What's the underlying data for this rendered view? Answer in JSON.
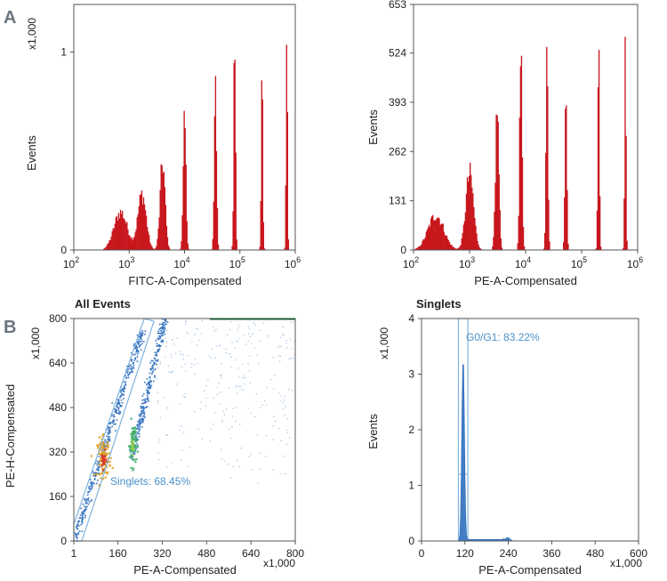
{
  "panels": {
    "a": "A",
    "b": "B"
  },
  "chart_data": [
    {
      "type": "histogram",
      "id": "fitc",
      "xlabel": "FITC-A-Compensated",
      "ylabel": "Events",
      "y_multiplier": "x1,000",
      "x_scale": "log",
      "xlim": [
        100,
        1000000
      ],
      "x_ticks": [
        {
          "base": "10",
          "exp": "2",
          "v": 100
        },
        {
          "base": "10",
          "exp": "3",
          "v": 1000
        },
        {
          "base": "10",
          "exp": "4",
          "v": 10000
        },
        {
          "base": "10",
          "exp": "5",
          "v": 100000
        },
        {
          "base": "10",
          "exp": "6",
          "v": 1000000
        }
      ],
      "ylim": [
        0,
        1.24
      ],
      "y_ticks": [
        {
          "label": "0",
          "v": 0
        },
        {
          "label": "1",
          "v": 1
        }
      ],
      "color": "#c8161d",
      "peaks": [
        {
          "center": 700,
          "height": 0.19,
          "width": 0.12
        },
        {
          "center": 1700,
          "height": 0.28,
          "width": 0.075
        },
        {
          "center": 4000,
          "height": 0.44,
          "width": 0.045
        },
        {
          "center": 10000,
          "height": 0.63,
          "width": 0.025
        },
        {
          "center": 36000,
          "height": 0.89,
          "width": 0.02
        },
        {
          "center": 80000,
          "height": 1.07,
          "width": 0.016
        },
        {
          "center": 250000,
          "height": 0.97,
          "width": 0.014
        },
        {
          "center": 700000,
          "height": 1.16,
          "width": 0.012
        }
      ]
    },
    {
      "type": "histogram",
      "id": "pe",
      "xlabel": "PE-A-Compensated",
      "ylabel": "Events",
      "x_scale": "log",
      "xlim": [
        100,
        1000000
      ],
      "x_ticks": [
        {
          "base": "10",
          "exp": "2",
          "v": 100
        },
        {
          "base": "10",
          "exp": "3",
          "v": 1000
        },
        {
          "base": "10",
          "exp": "4",
          "v": 10000
        },
        {
          "base": "10",
          "exp": "5",
          "v": 100000
        },
        {
          "base": "10",
          "exp": "6",
          "v": 1000000
        }
      ],
      "ylim": [
        0,
        653
      ],
      "y_ticks": [
        {
          "label": "0",
          "v": 0
        },
        {
          "label": "131",
          "v": 131
        },
        {
          "label": "262",
          "v": 262
        },
        {
          "label": "393",
          "v": 393
        },
        {
          "label": "524",
          "v": 524
        },
        {
          "label": "653",
          "v": 653
        }
      ],
      "color": "#c8161d",
      "peaks": [
        {
          "center": 250,
          "height": 92,
          "width": 0.14
        },
        {
          "center": 1000,
          "height": 200,
          "width": 0.07
        },
        {
          "center": 3100,
          "height": 378,
          "width": 0.03
        },
        {
          "center": 8200,
          "height": 520,
          "width": 0.022
        },
        {
          "center": 24000,
          "height": 505,
          "width": 0.018
        },
        {
          "center": 52000,
          "height": 500,
          "width": 0.016
        },
        {
          "center": 200000,
          "height": 530,
          "width": 0.014
        },
        {
          "center": 600000,
          "height": 540,
          "width": 0.012
        }
      ]
    },
    {
      "type": "scatter",
      "id": "allevents",
      "title": "All Events",
      "xlabel": "PE-A-Compensated",
      "ylabel": "PE-H-Compensated",
      "x_multiplier": "x1,000",
      "y_multiplier": "x1,000",
      "xlim": [
        1,
        800
      ],
      "ylim": [
        0,
        800
      ],
      "x_ticks": [
        {
          "label": "1",
          "v": 1
        },
        {
          "label": "160",
          "v": 160
        },
        {
          "label": "320",
          "v": 320
        },
        {
          "label": "480",
          "v": 480
        },
        {
          "label": "640",
          "v": 640
        },
        {
          "label": "800",
          "v": 800
        }
      ],
      "y_ticks": [
        {
          "label": "0",
          "v": 0
        },
        {
          "label": "160",
          "v": 160
        },
        {
          "label": "320",
          "v": 320
        },
        {
          "label": "480",
          "v": 480
        },
        {
          "label": "640",
          "v": 640
        },
        {
          "label": "800",
          "v": 800
        }
      ],
      "gate": {
        "label": "Singlets: 68.45%",
        "polygon": [
          [
            0,
            0
          ],
          [
            30,
            0
          ],
          [
            290,
            790
          ],
          [
            255,
            800
          ],
          [
            0,
            60
          ]
        ]
      },
      "populations": [
        {
          "name": "singlet-diagonal",
          "from": [
            5,
            10
          ],
          "to": [
            250,
            760
          ],
          "count": 380,
          "color": "#2f6fbe"
        },
        {
          "name": "doublet-diagonal",
          "from": [
            210,
            300
          ],
          "to": [
            330,
            800
          ],
          "count": 260,
          "color": "#2f6fbe"
        },
        {
          "name": "g1-cluster",
          "center": [
            110,
            300
          ],
          "spread": [
            12,
            35
          ],
          "count": 90,
          "color": "#e0a020"
        },
        {
          "name": "g2-cluster",
          "center": [
            215,
            350
          ],
          "spread": [
            6,
            40
          ],
          "count": 70,
          "color": "#3fae6a"
        }
      ]
    },
    {
      "type": "histogram",
      "id": "singlets",
      "title": "Singlets",
      "xlabel": "PE-A-Compensated",
      "ylabel": "Events",
      "x_multiplier": "x1,000",
      "y_multiplier": "x1,000",
      "xlim": [
        0,
        600
      ],
      "ylim": [
        0,
        4
      ],
      "x_ticks": [
        {
          "label": "0",
          "v": 0
        },
        {
          "label": "120",
          "v": 120
        },
        {
          "label": "240",
          "v": 240
        },
        {
          "label": "360",
          "v": 360
        },
        {
          "label": "480",
          "v": 480
        },
        {
          "label": "600",
          "v": 600
        }
      ],
      "y_ticks": [
        {
          "label": "0",
          "v": 0
        },
        {
          "label": "1",
          "v": 1
        },
        {
          "label": "2",
          "v": 2
        },
        {
          "label": "3",
          "v": 3
        },
        {
          "label": "4",
          "v": 4
        }
      ],
      "gate": {
        "label": "G0/G1: 83.22%",
        "x_range": [
          102,
          128
        ]
      },
      "color": "#2f6fbe",
      "peaks": [
        {
          "center": 115,
          "height": 3.3,
          "width": 3.5
        },
        {
          "center": 238,
          "height": 0.06,
          "width": 6
        }
      ]
    }
  ]
}
